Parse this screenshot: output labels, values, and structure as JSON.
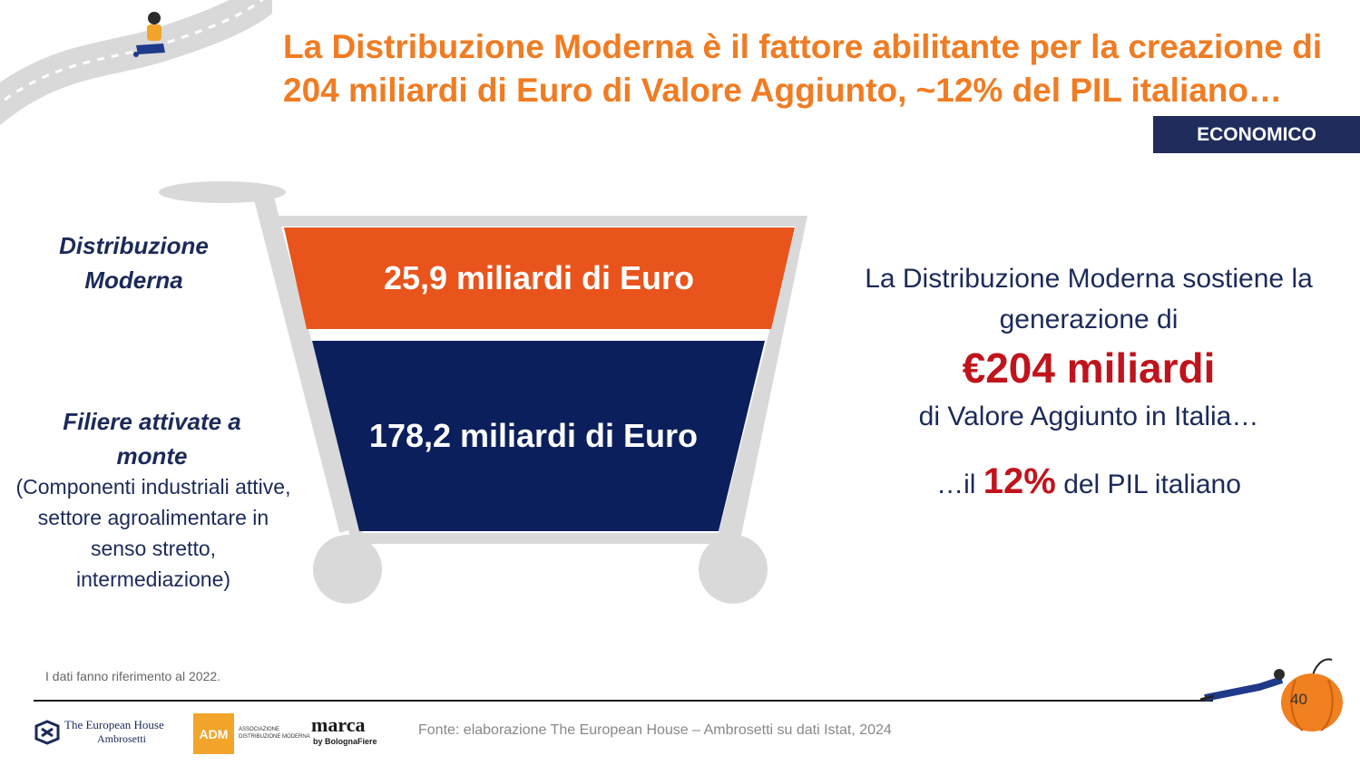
{
  "title": "La Distribuzione Moderna è il fattore abilitante per la creazione di 204 miliardi di Euro di Valore Aggiunto, ~12% del PIL italiano…",
  "tag": "ECONOMICO",
  "left_labels": {
    "dm": "Distribuzione Moderna",
    "filiere": "Filiere attivate a monte",
    "filiere_sub": "(Componenti industriali attive, settore agroalimentare in senso stretto, intermediazione)"
  },
  "bars": {
    "top": "25,9 miliardi di Euro",
    "bottom": "178,2 miliardi di Euro"
  },
  "right": {
    "line1": "La Distribuzione Moderna sostiene la generazione di",
    "big": "€204 miliardi",
    "line2": "di Valore Aggiunto in Italia…",
    "pre": "…il",
    "pct": "12%",
    "post": "del PIL italiano"
  },
  "note": "I dati fanno riferimento al 2022.",
  "source": "Fonte: elaborazione The European House – Ambrosetti su dati Istat, 2024",
  "page_number": "40",
  "logos": {
    "teh_line1": "The European House",
    "teh_line2": "Ambrosetti",
    "adm_mark": "ADM",
    "adm_text1": "ASSOCIAZIONE",
    "adm_text2": "DISTRIBUZIONE MODERNA",
    "marca_mark": "marca",
    "marca_by": "by BolognaFiere"
  },
  "colors": {
    "orange": "#e8541c",
    "navy": "#0b1f5c",
    "accent_red": "#c0141c",
    "title_orange": "#f07c23",
    "tag_bg": "#1f2c5c"
  }
}
